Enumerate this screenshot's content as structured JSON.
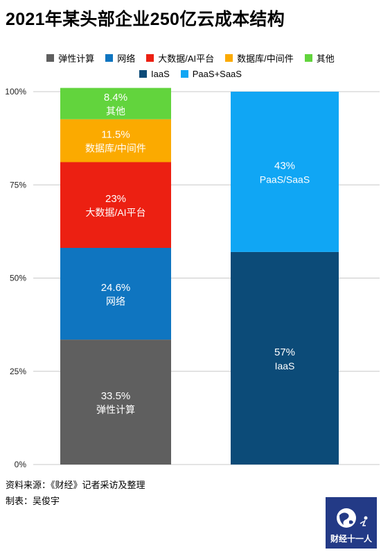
{
  "title": "2021年某头部企业250亿云成本结构",
  "legend_row1": [
    {
      "label": "弹性计算",
      "color": "#5f5f5f"
    },
    {
      "label": "网络",
      "color": "#0f75c0"
    },
    {
      "label": "大数据/AI平台",
      "color": "#ec2012"
    },
    {
      "label": "数据库/中间件",
      "color": "#fbaa00"
    },
    {
      "label": "其他",
      "color": "#62d43d"
    }
  ],
  "legend_row2": [
    {
      "label": "IaaS",
      "color": "#0c4b78"
    },
    {
      "label": "PaaS+SaaS",
      "color": "#10a6f4"
    }
  ],
  "chart_data": {
    "type": "bar",
    "stacked": true,
    "ylim": [
      0,
      100
    ],
    "yticks": [
      "0%",
      "25%",
      "50%",
      "75%",
      "100%"
    ],
    "bars": [
      {
        "segments": [
          {
            "name": "弹性计算",
            "value": 33.5,
            "label": "33.5%",
            "color": "#5f5f5f"
          },
          {
            "name": "网络",
            "value": 24.6,
            "label": "24.6%",
            "color": "#0f75c0"
          },
          {
            "name": "大数据/AI平台",
            "value": 23,
            "label": "23%",
            "color": "#ec2012"
          },
          {
            "name": "数据库/中间件",
            "value": 11.5,
            "label": "11.5%",
            "color": "#fbaa00"
          },
          {
            "name": "其他",
            "value": 8.4,
            "label": "8.4%",
            "color": "#62d43d"
          }
        ]
      },
      {
        "segments": [
          {
            "name": "IaaS",
            "value": 57,
            "label": "57%",
            "color": "#0c4b78"
          },
          {
            "name": "PaaS/SaaS",
            "value": 43,
            "label": "43%",
            "color": "#10a6f4"
          }
        ]
      }
    ]
  },
  "footer": {
    "source": "资料来源：《财经》记者采访及整理",
    "author": "制表：吴俊宇"
  },
  "logo": {
    "text": "财经十一人"
  }
}
